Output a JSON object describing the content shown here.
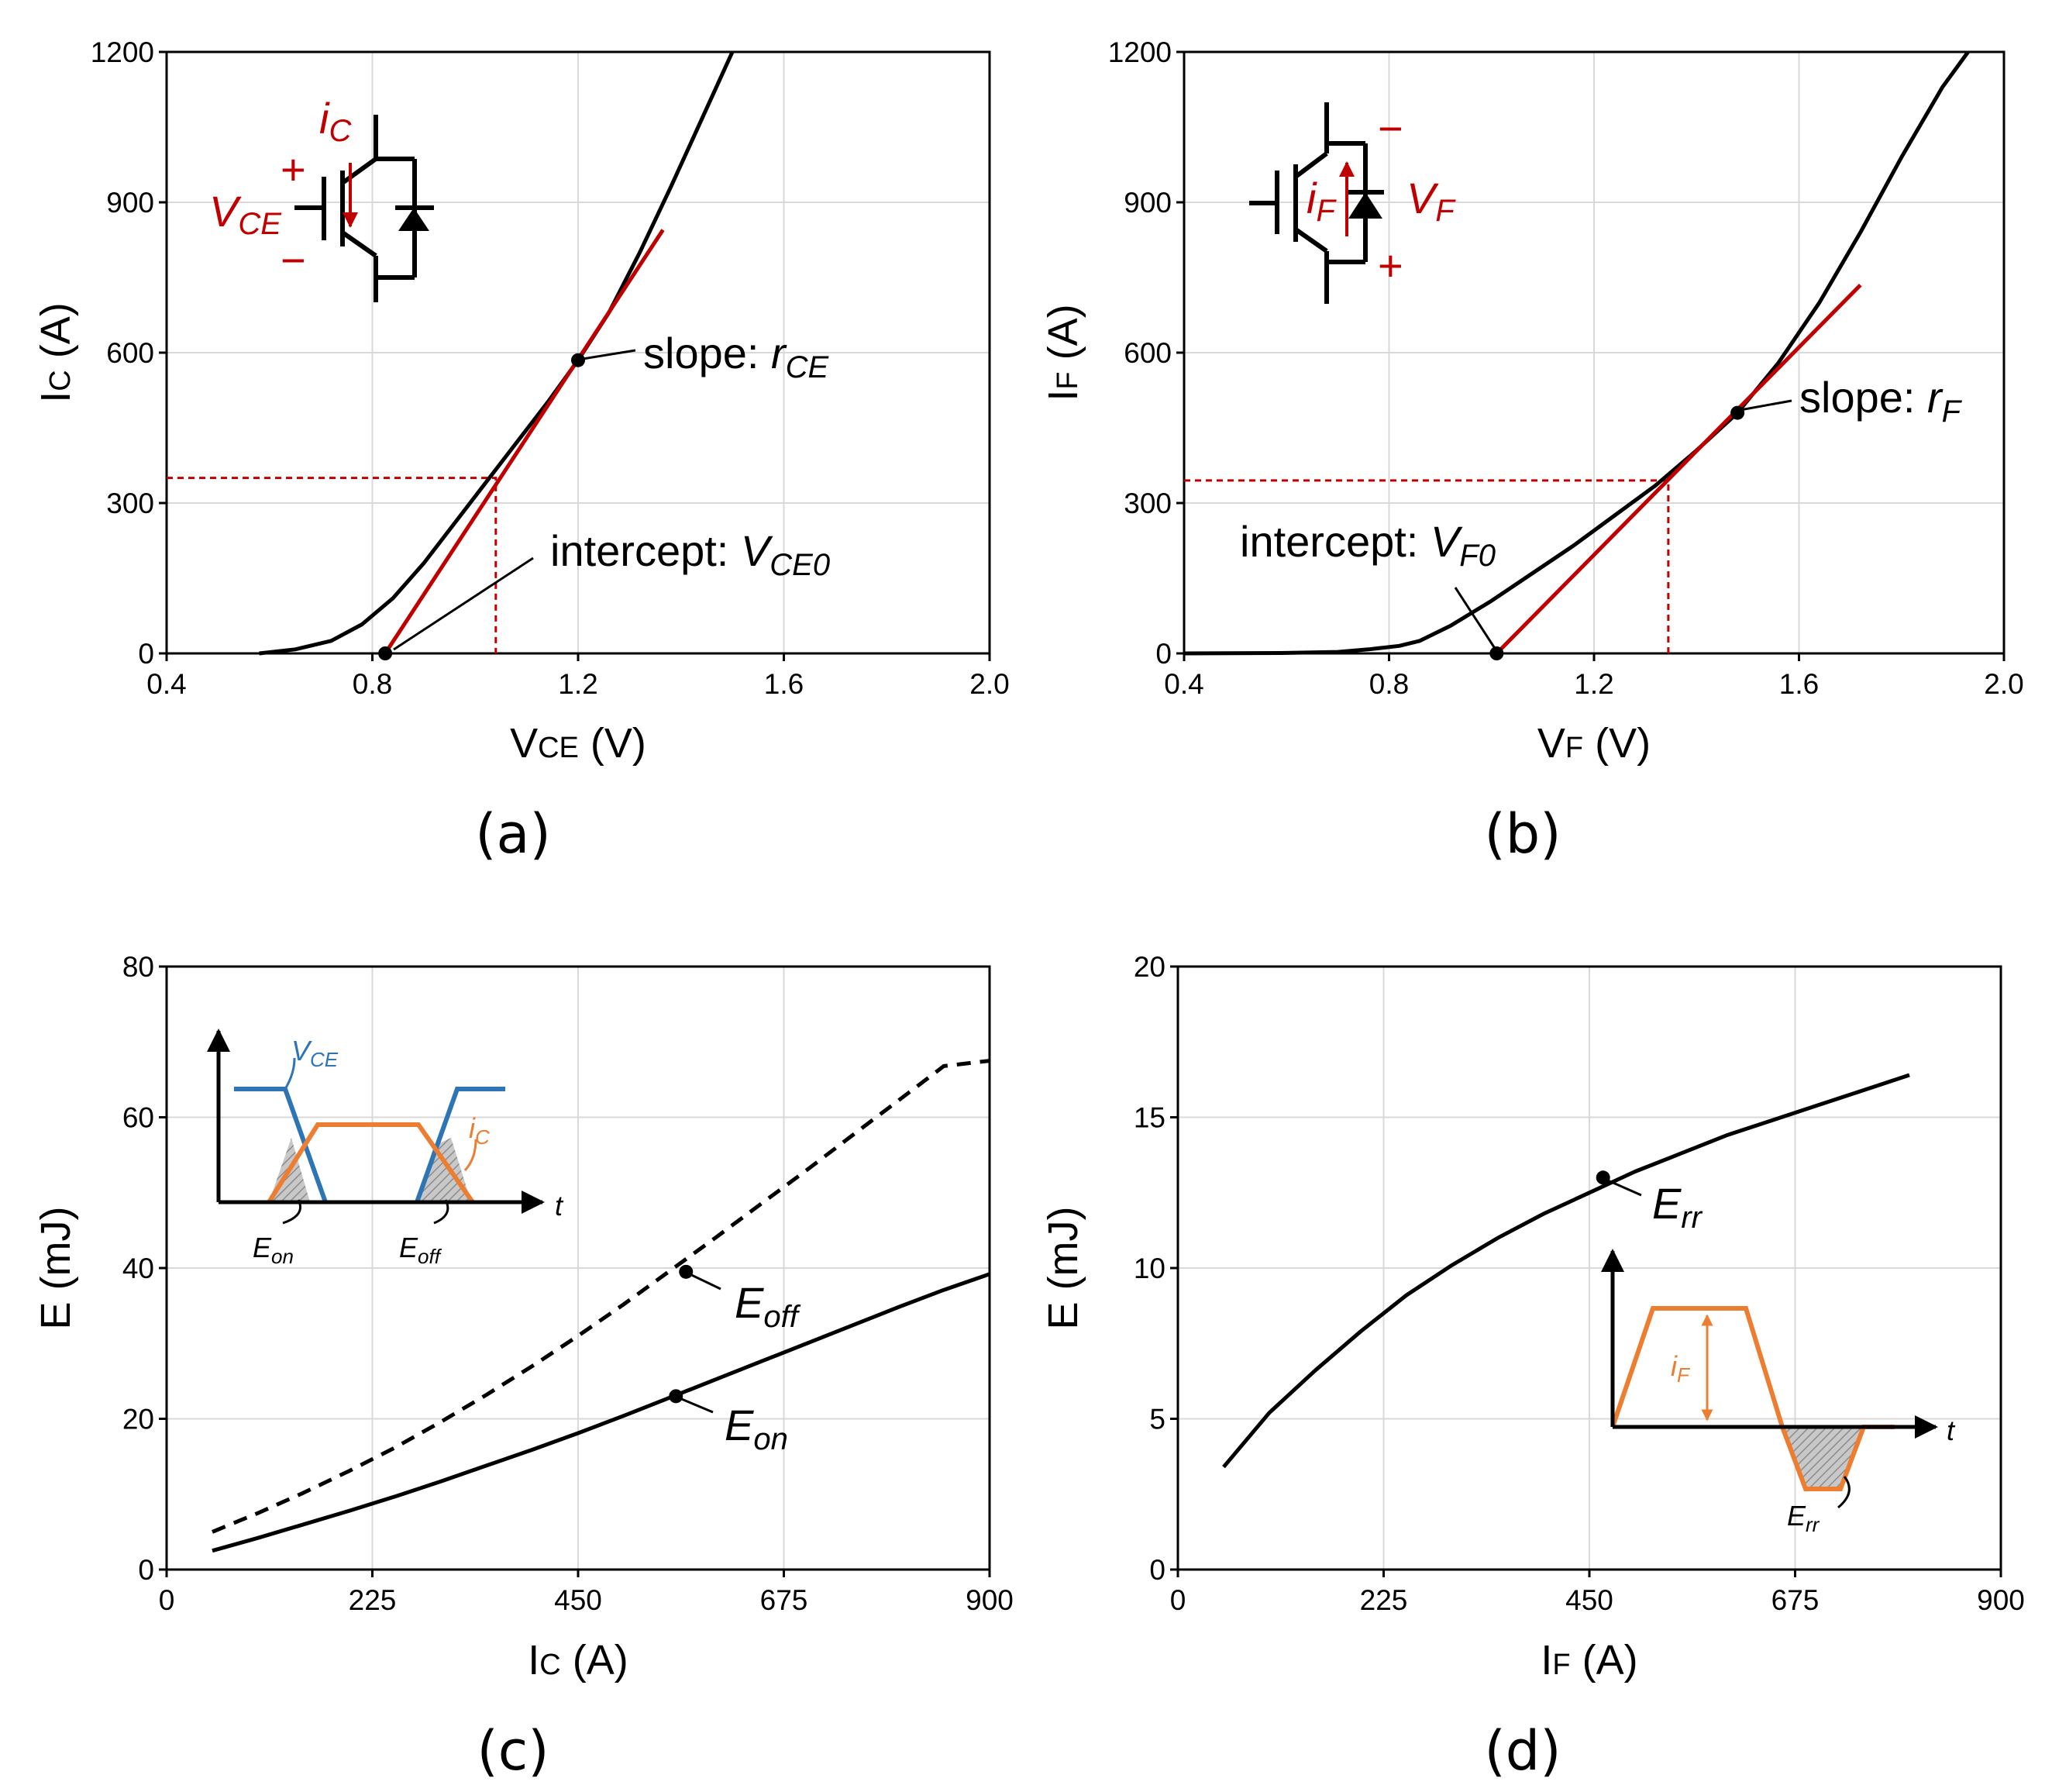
{
  "colors": {
    "curve": "#000000",
    "tangent": "#c00000",
    "guide": "#c00000",
    "vce_wave": "#2e75b6",
    "ic_wave": "#ed7d31",
    "grid": "#d9d9d9",
    "hatch": "#8c8c8c"
  },
  "chart_data": [
    {
      "panel": "(a)",
      "type": "line",
      "xlabel": "VCE (V)",
      "ylabel": "IC (A)",
      "xlim": [
        0.4,
        2.0
      ],
      "ylim": [
        0,
        1200
      ],
      "xticks": [
        "0.4",
        "0.8",
        "1.2",
        "1.6",
        "2.0"
      ],
      "yticks": [
        "0",
        "300",
        "600",
        "900",
        "1200"
      ],
      "series": [
        {
          "name": "IC-VCE characteristic",
          "style": "solid",
          "x": [
            0.58,
            0.65,
            0.72,
            0.78,
            0.84,
            0.9,
            0.96,
            1.02,
            1.08,
            1.14,
            1.2,
            1.26,
            1.32,
            1.38,
            1.44,
            1.5
          ],
          "y": [
            0,
            8,
            25,
            58,
            110,
            180,
            260,
            340,
            420,
            500,
            585,
            680,
            800,
            930,
            1065,
            1200
          ]
        },
        {
          "name": "tangent",
          "style": "red",
          "x": [
            0.825,
            1.365
          ],
          "y": [
            0,
            845
          ]
        }
      ],
      "points": [
        {
          "x": 0.825,
          "y": 0,
          "label": "intercept: ",
          "sub": "CE0"
        },
        {
          "x": 1.2,
          "y": 585,
          "label": "slope: ",
          "sub": "CE"
        }
      ],
      "guide": {
        "x": 1.04,
        "y": 350
      },
      "annotations": {
        "slope_text": "slope: ",
        "slope_sym": "r",
        "slope_sub": "CE",
        "intercept_text": "intercept: ",
        "intercept_sym": "V",
        "intercept_sub": "CE0"
      },
      "inset": {
        "current": "i",
        "current_sub": "C",
        "voltage": "V",
        "voltage_sub": "CE",
        "plus": "+",
        "minus": "−"
      }
    },
    {
      "panel": "(b)",
      "type": "line",
      "xlabel": "VF (V)",
      "ylabel": "IF (A)",
      "xlim": [
        0.4,
        2.0
      ],
      "ylim": [
        0,
        1200
      ],
      "xticks": [
        "0.4",
        "0.8",
        "1.2",
        "1.6",
        "2.0"
      ],
      "yticks": [
        "0",
        "300",
        "600",
        "900",
        "1200"
      ],
      "series": [
        {
          "name": "IF-VF characteristic",
          "style": "solid",
          "x": [
            0.4,
            0.6,
            0.7,
            0.76,
            0.82,
            0.86,
            0.92,
            1.0,
            1.08,
            1.16,
            1.24,
            1.32,
            1.4,
            1.48,
            1.56,
            1.64,
            1.72,
            1.8,
            1.88,
            1.93
          ],
          "y": [
            0,
            1,
            3,
            8,
            15,
            25,
            55,
            105,
            160,
            215,
            275,
            335,
            405,
            480,
            580,
            700,
            840,
            990,
            1130,
            1200
          ]
        },
        {
          "name": "tangent",
          "style": "red",
          "x": [
            1.01,
            1.72
          ],
          "y": [
            0,
            735
          ]
        }
      ],
      "points": [
        {
          "x": 1.01,
          "y": 0
        },
        {
          "x": 1.48,
          "y": 480
        }
      ],
      "guide": {
        "x": 1.345,
        "y": 345
      },
      "annotations": {
        "slope_text": "slope: ",
        "slope_sym": "r",
        "slope_sub": "F",
        "intercept_text": "intercept: ",
        "intercept_sym": "V",
        "intercept_sub": "F0"
      },
      "inset": {
        "current": "i",
        "current_sub": "F",
        "voltage": "V",
        "voltage_sub": "F",
        "plus": "+",
        "minus": "−"
      }
    },
    {
      "panel": "(c)",
      "type": "line",
      "xlabel": "IC (A)",
      "ylabel": "E (mJ)",
      "xlim": [
        0,
        900
      ],
      "ylim": [
        0,
        80
      ],
      "xticks": [
        "0",
        "225",
        "450",
        "675",
        "900"
      ],
      "yticks": [
        "0",
        "20",
        "40",
        "60",
        "80"
      ],
      "series": [
        {
          "name": "Eoff",
          "style": "dashed",
          "x": [
            50,
            100,
            150,
            200,
            250,
            300,
            350,
            400,
            450,
            500,
            550,
            600,
            650,
            700,
            750,
            800,
            850,
            900
          ],
          "y": [
            5.0,
            7.5,
            10.2,
            13.1,
            16.2,
            19.6,
            23.2,
            27.0,
            31.0,
            35.2,
            39.6,
            44.0,
            48.5,
            53.0,
            57.6,
            62.2,
            66.8,
            67.5
          ]
        },
        {
          "name": "Eon",
          "style": "solid",
          "x": [
            50,
            100,
            150,
            200,
            250,
            300,
            350,
            400,
            450,
            500,
            550,
            600,
            650,
            700,
            750,
            800,
            850,
            900
          ],
          "y": [
            2.5,
            4.2,
            6.0,
            7.8,
            9.7,
            11.7,
            13.8,
            15.9,
            18.1,
            20.4,
            22.8,
            25.2,
            27.6,
            30.0,
            32.4,
            34.8,
            37.1,
            39.2
          ]
        }
      ],
      "points": [
        {
          "x": 568,
          "y": 39.5,
          "label": "Eoff"
        },
        {
          "x": 557,
          "y": 23.0,
          "label": "Eon"
        }
      ],
      "annotations": {
        "eoff_sym": "E",
        "eoff_sub": "off",
        "eon_sym": "E",
        "eon_sub": "on"
      },
      "inset": {
        "vce_label": "V",
        "vce_sub": "CE",
        "ic_label": "i",
        "ic_sub": "C",
        "t_label": "t",
        "eon_label": "E",
        "eon_sub": "on",
        "eoff_label": "E",
        "eoff_sub": "off"
      }
    },
    {
      "panel": "(d)",
      "type": "line",
      "xlabel": "IF (A)",
      "ylabel": "E (mJ)",
      "xlim": [
        0,
        900
      ],
      "ylim": [
        0,
        20
      ],
      "xticks": [
        "0",
        "225",
        "450",
        "675",
        "900"
      ],
      "yticks": [
        "0",
        "5",
        "10",
        "15",
        "20"
      ],
      "series": [
        {
          "name": "Err",
          "style": "solid",
          "x": [
            50,
            100,
            150,
            200,
            250,
            300,
            350,
            400,
            450,
            500,
            550,
            600,
            650,
            700,
            750,
            800
          ],
          "y": [
            3.4,
            5.2,
            6.6,
            7.9,
            9.1,
            10.1,
            11.0,
            11.8,
            12.5,
            13.2,
            13.8,
            14.4,
            14.9,
            15.4,
            15.9,
            16.4
          ]
        }
      ],
      "points": [
        {
          "x": 465,
          "y": 13.0,
          "label": "Err"
        }
      ],
      "annotations": {
        "err_sym": "E",
        "err_sub": "rr"
      },
      "inset": {
        "if_label": "i",
        "if_sub": "F",
        "t_label": "t",
        "err_label": "E",
        "err_sub": "rr"
      }
    }
  ],
  "captions": [
    "(a)",
    "(b)",
    "(c)",
    "(d)"
  ]
}
